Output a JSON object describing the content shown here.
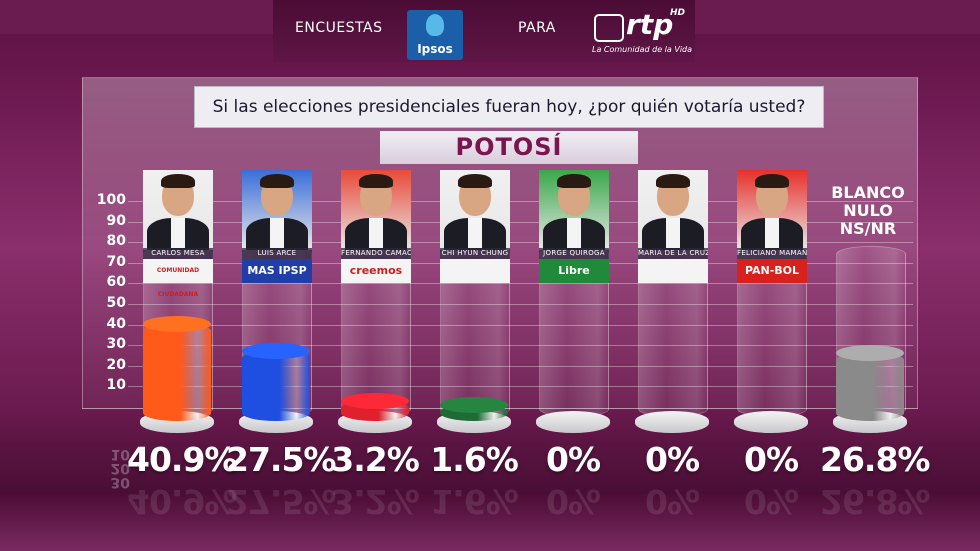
{
  "header": {
    "left_text": "ENCUESTAS",
    "middle_text": "PARA",
    "ipsos_logo": "Ipsos",
    "rtp_logo": "rtp",
    "rtp_hd": "HD",
    "rtp_tagline": "La Comunidad de la Vida"
  },
  "question": "Si las elecciones presidenciales fueran hoy, ¿por quién votaría usted?",
  "region": "POTOSÍ",
  "blank_label": [
    "BLANCO",
    "NULO",
    "NS/NR"
  ],
  "chart_data": {
    "type": "bar",
    "title": "Si las elecciones presidenciales fueran hoy, ¿por quién votaría usted?",
    "subtitle": "POTOSÍ",
    "categories": [
      "CARLOS MESA",
      "LUIS ARCE",
      "FERNANDO CAMACHO",
      "CHI HYUN CHUNG",
      "JORGE QUIROGA",
      "MARIA DE LA CRUZ BAYA",
      "FELICIANO MAMANI",
      "BLANCO NULO NS/NR"
    ],
    "values": [
      40.9,
      27.5,
      3.2,
      1.6,
      0,
      0,
      0,
      26.8
    ],
    "value_labels": [
      "40.9%",
      "27.5%",
      "3.2%",
      "1.6%",
      "0%",
      "0%",
      "0%",
      "26.8%"
    ],
    "parties": [
      "COMUNIDAD CIUDADANA",
      "MAS IPSP",
      "creemos",
      "",
      "Libre",
      "",
      "PAN-BOL",
      ""
    ],
    "colors": [
      "#ff5a1a",
      "#1f4fe0",
      "#e0202c",
      "#1e6b34",
      "#d8d8d8",
      "#d8d8d8",
      "#d8d8d8",
      "#8a8a8a"
    ],
    "ylim": [
      0,
      100
    ],
    "yticks": [
      "10",
      "20",
      "30",
      "40",
      "50",
      "60",
      "70",
      "80",
      "90",
      "100"
    ],
    "grid": true
  }
}
